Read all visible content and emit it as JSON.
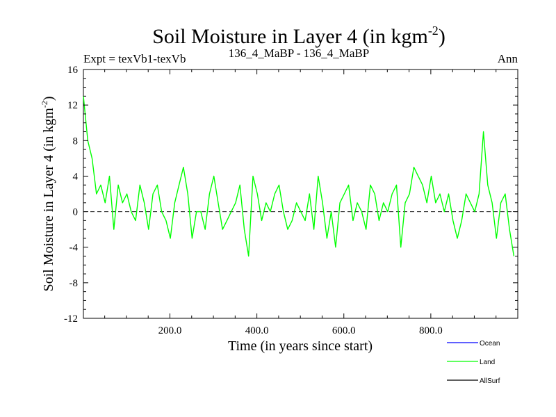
{
  "chart_data": {
    "type": "line",
    "title": "Soil Moisture in Layer 4 (in kgm",
    "title_exponent": "-2",
    "title_close": ")",
    "subtitle_left": "Expt = texVb1-texVb",
    "subtitle_center": "136_4_MaBP - 136_4_MaBP",
    "subtitle_right": "Ann",
    "xlabel": "Time (in years since start)",
    "ylabel": "Soil Moisture in Layer 4 (in kgm",
    "ylabel_exponent": "-2",
    "ylabel_close": ")",
    "xlim": [
      1,
      1000
    ],
    "ylim": [
      -12,
      16
    ],
    "x_tick_values": [
      200,
      400,
      600,
      800
    ],
    "x_tick_labels": [
      "200.0",
      "400.0",
      "600.0",
      "800.0"
    ],
    "y_tick_values": [
      -12,
      -8,
      -4,
      0,
      4,
      8,
      12,
      16
    ],
    "y_tick_labels": [
      "-12",
      "-8",
      "-4",
      "0",
      "4",
      "8",
      "12",
      "16"
    ],
    "reference_line": 0,
    "legend_position": "bottom-right",
    "series": [
      {
        "name": "Ocean",
        "color": "#0000ff",
        "values": []
      },
      {
        "name": "Land",
        "color": "#00ff00",
        "x_step": 10,
        "x_start": 1,
        "values": [
          13,
          8,
          6,
          2,
          3,
          1,
          4,
          -2,
          3,
          1,
          2,
          0,
          -1,
          3,
          1,
          -2,
          2,
          3,
          0,
          -1,
          -3,
          1,
          3,
          5,
          2,
          -3,
          0,
          0,
          -2,
          2,
          4,
          1,
          -2,
          -1,
          0,
          1,
          3,
          -2,
          -5,
          4,
          2,
          -1,
          1,
          0,
          2,
          3,
          0,
          -2,
          -1,
          1,
          0,
          -1,
          2,
          -2,
          4,
          1,
          -3,
          0,
          -4,
          1,
          2,
          3,
          -1,
          1,
          0,
          -2,
          3,
          2,
          -1,
          1,
          0,
          2,
          3,
          -4,
          1,
          2,
          5,
          4,
          3,
          1,
          4,
          1,
          2,
          0,
          2,
          -1,
          -3,
          -1,
          2,
          1,
          0,
          2,
          9,
          3,
          1,
          -3,
          1,
          2,
          -2,
          -5
        ]
      },
      {
        "name": "AllSurf",
        "color": "#000000",
        "values": []
      }
    ]
  }
}
